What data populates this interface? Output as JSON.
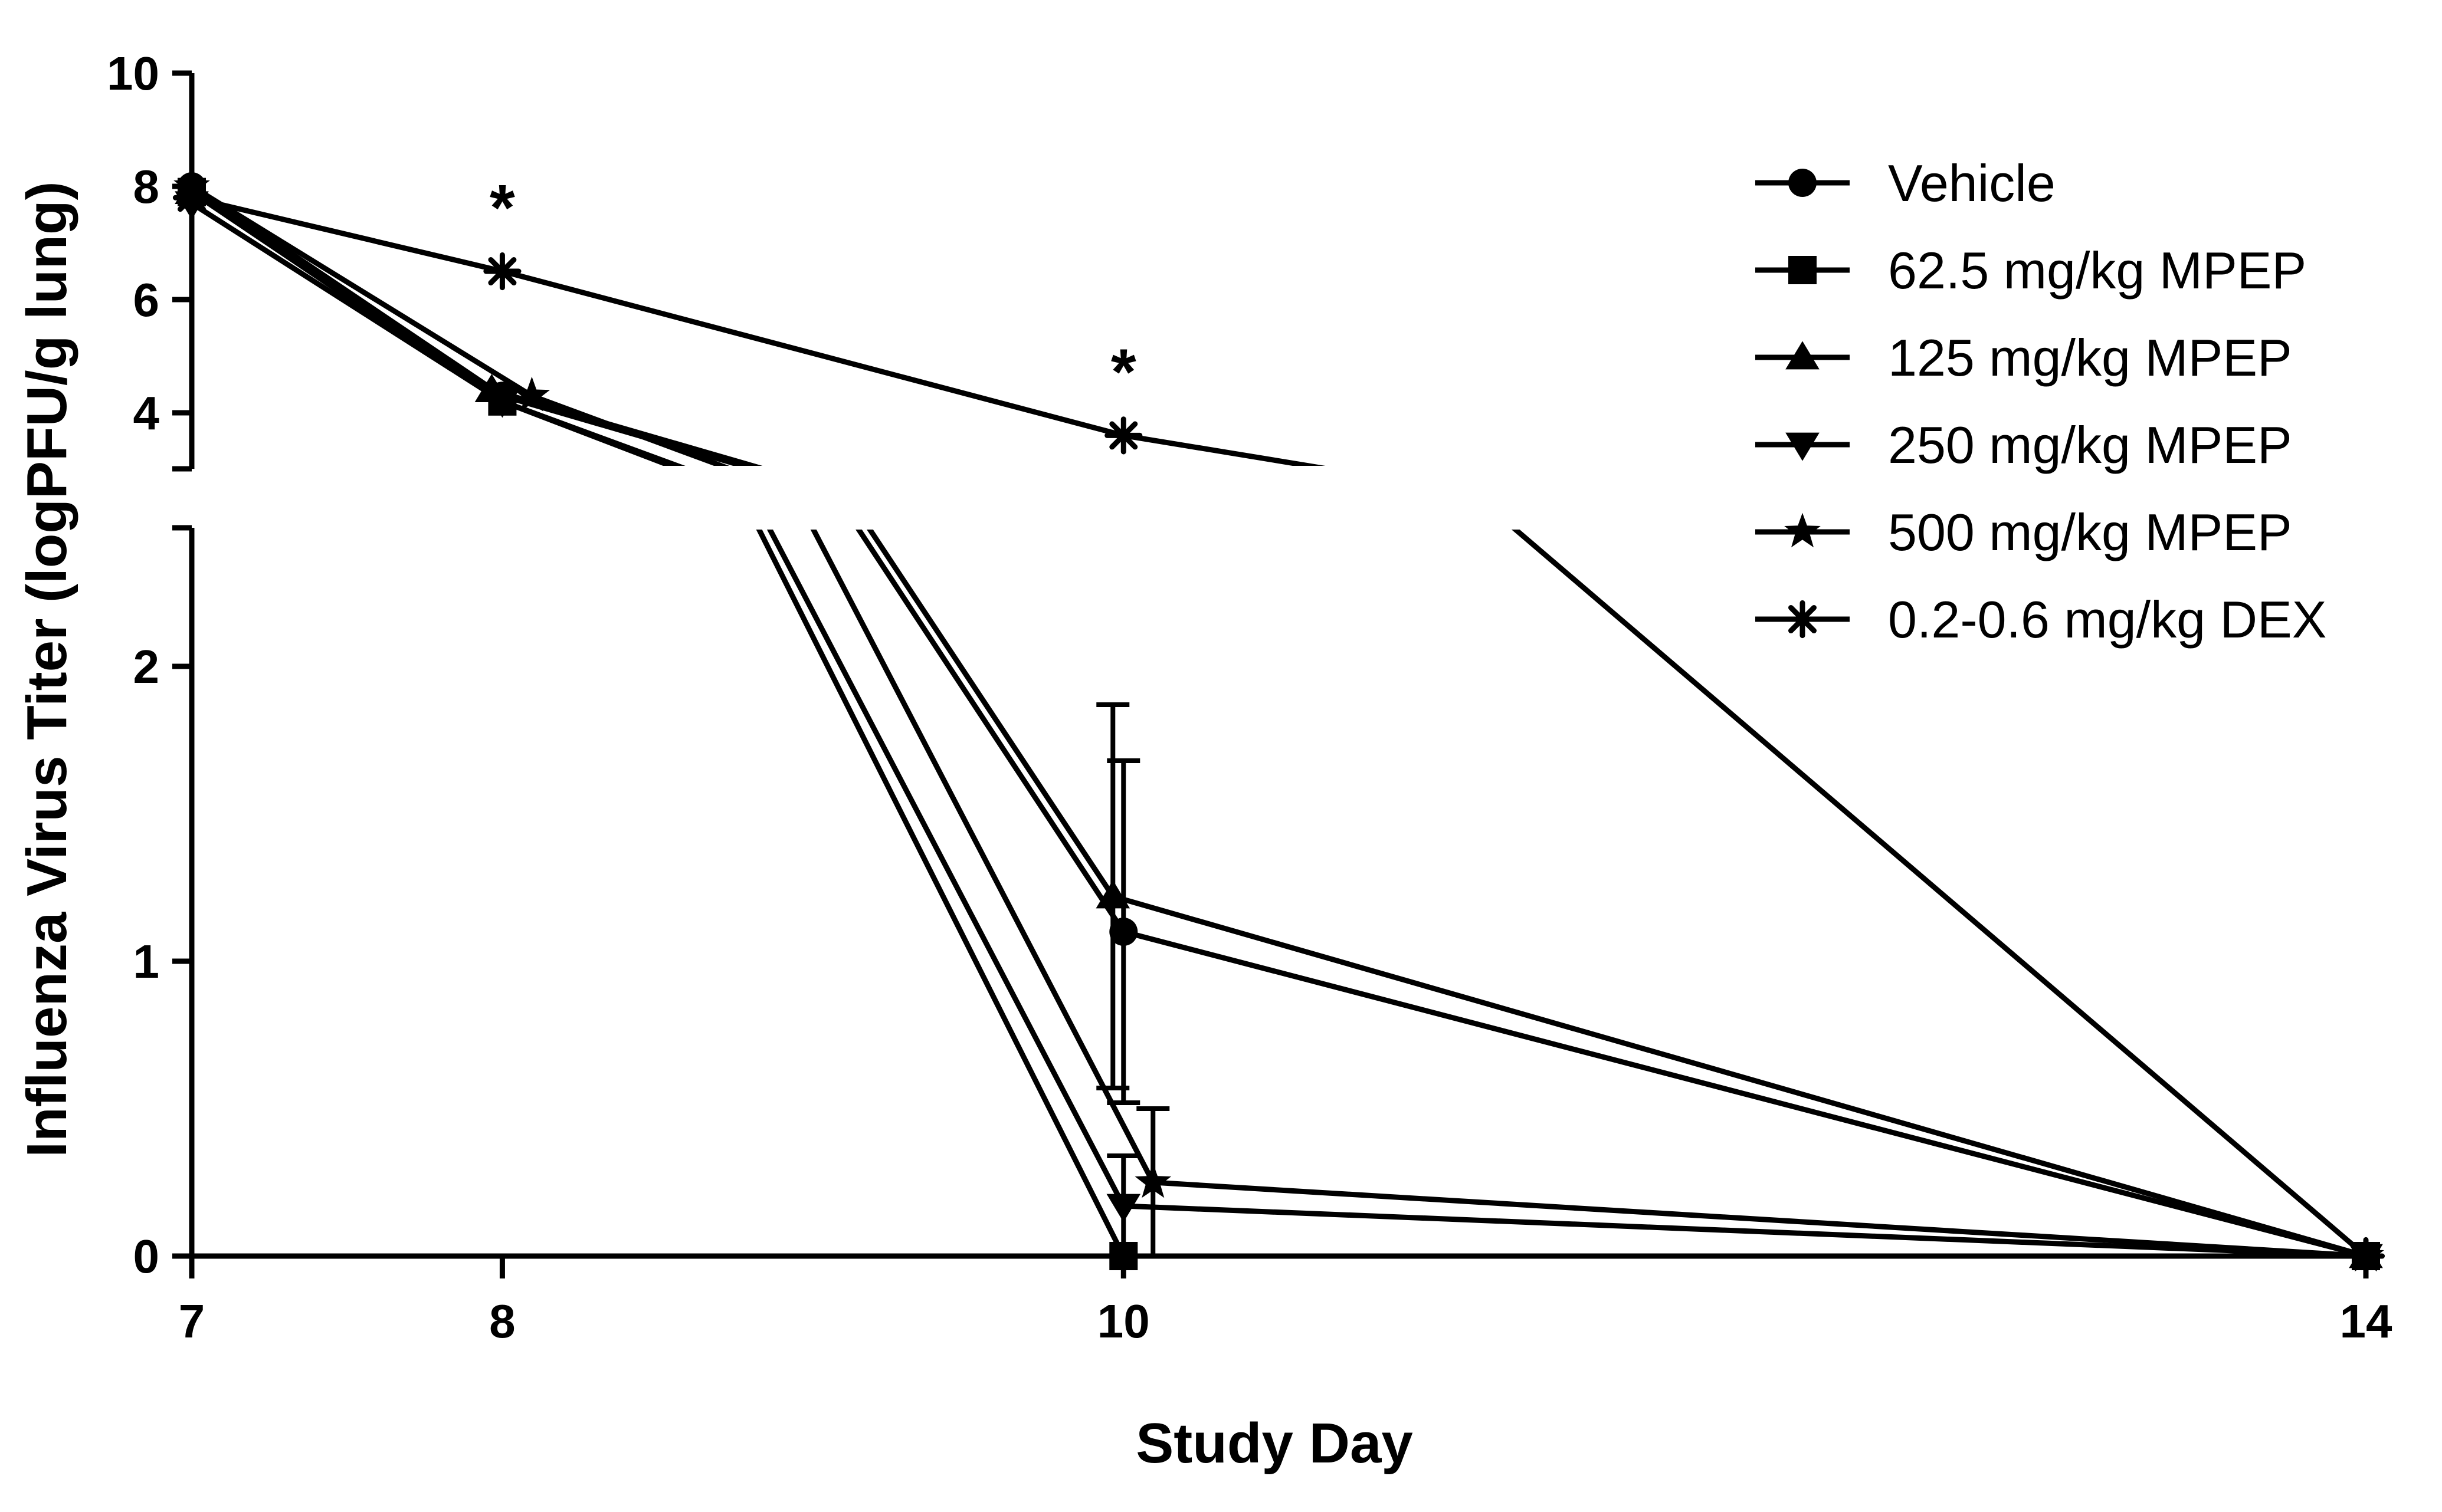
{
  "chart_data": {
    "type": "line",
    "xlabel": "Study Day",
    "ylabel": "Influenza Virus Titer (logPFU/g lung)",
    "x_ticks": [
      "7",
      "8",
      "10",
      "14"
    ],
    "y_ticks_lower": [
      "0",
      "1",
      "2"
    ],
    "y_ticks_upper": [
      "4",
      "6",
      "8",
      "10"
    ],
    "ylim_lower": [
      0,
      2.5
    ],
    "ylim_upper": [
      3,
      10
    ],
    "xlim": [
      7,
      14
    ],
    "y_axis_break": [
      2.5,
      3
    ],
    "legend_position": "top-right",
    "significance_marks": [
      {
        "x": 8,
        "y": 6.5,
        "label": "*"
      },
      {
        "x": 10,
        "y": 3.6,
        "label": "*"
      }
    ],
    "series": [
      {
        "name": "Vehicle",
        "marker": "circle",
        "x": [
          7,
          8,
          10,
          14
        ],
        "y": [
          8.0,
          4.3,
          1.1,
          0.0
        ],
        "err_up": [
          null,
          null,
          0.58,
          null
        ]
      },
      {
        "name": "62.5 mg/kg MPEP",
        "marker": "square",
        "x": [
          7,
          8,
          10,
          14
        ],
        "y": [
          7.9,
          4.2,
          0.0,
          0.0
        ],
        "err_up": [
          null,
          null,
          null,
          null
        ]
      },
      {
        "name": "125 mg/kg MPEP",
        "marker": "triangle-up",
        "x": [
          7,
          8,
          10,
          14
        ],
        "y": [
          7.9,
          4.4,
          1.22,
          0.0
        ],
        "err_up": [
          null,
          null,
          0.65,
          null
        ]
      },
      {
        "name": "250 mg/kg MPEP",
        "marker": "triangle-down",
        "x": [
          7,
          8,
          10,
          14
        ],
        "y": [
          7.7,
          4.2,
          0.17,
          0.0
        ],
        "err_up": [
          null,
          null,
          0.17,
          null
        ]
      },
      {
        "name": "500 mg/kg MPEP",
        "marker": "star",
        "x": [
          7,
          8,
          10,
          14
        ],
        "y": [
          8.0,
          4.3,
          0.25,
          0.0
        ],
        "err_up": [
          null,
          null,
          0.25,
          null
        ]
      },
      {
        "name": "0.2-0.6 mg/kg DEX",
        "marker": "asterisk",
        "x": [
          7,
          8,
          10,
          14
        ],
        "y": [
          7.8,
          6.5,
          3.6,
          0.0
        ],
        "err_up": [
          null,
          null,
          null,
          null
        ]
      }
    ]
  }
}
